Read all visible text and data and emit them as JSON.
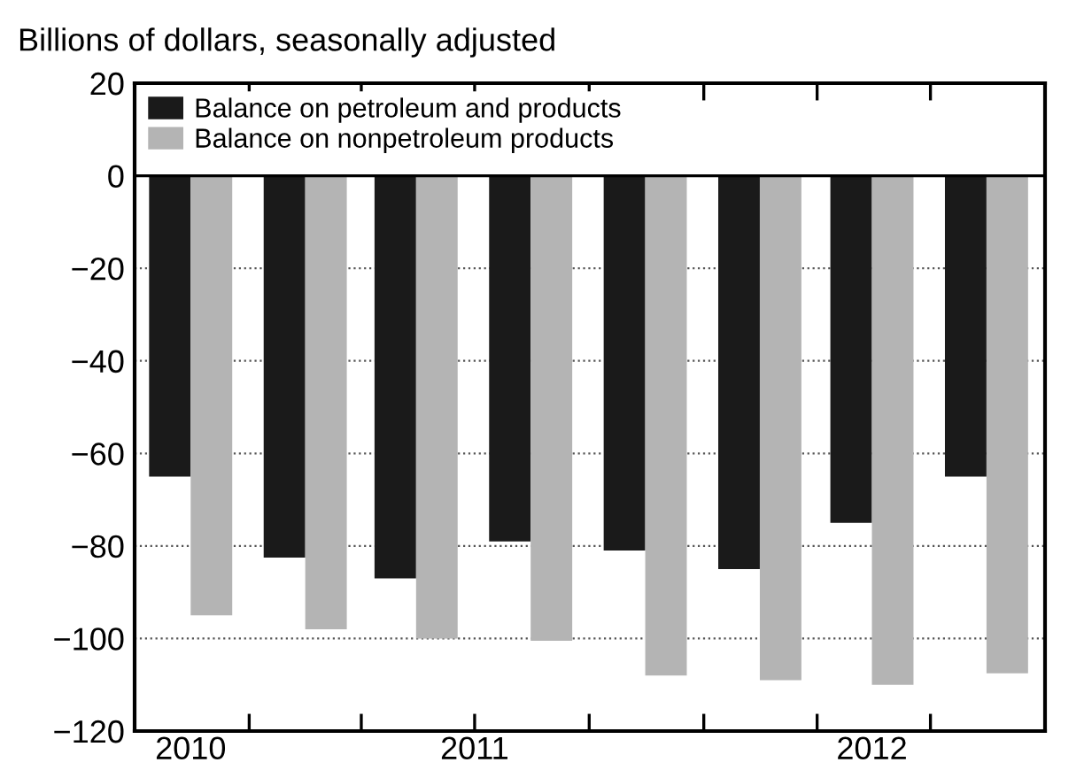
{
  "chart_data": {
    "type": "bar",
    "ylabel": "Billions of dollars, seasonally adjusted",
    "x": [
      "2010-11-15",
      "2011-02-15",
      "2011-05-15",
      "2011-08-15",
      "2011-11-15",
      "2012-02-15",
      "2012-05-15",
      "2012-08-15"
    ],
    "series": [
      {
        "name": "Balance on petroleum and products",
        "color": "#1a1a1a",
        "values": [
          -65,
          -82.5,
          -87,
          -79,
          -81,
          -85,
          -75,
          -65
        ]
      },
      {
        "name": "Balance on nonpetroleum products",
        "color": "#b4b4b4",
        "values": [
          -95,
          -98,
          -100,
          -100.5,
          -108,
          -109,
          -110,
          -107.5
        ]
      }
    ],
    "xlim": [
      "2010-10-01",
      "2012-10-01"
    ],
    "xticks": [
      {
        "value": "2011-01-01",
        "label": null
      },
      {
        "value": "2011-04-01",
        "label": null
      },
      {
        "value": "2011-07-01",
        "label": null
      },
      {
        "value": "2011-10-01",
        "label": null
      },
      {
        "value": "2012-01-01",
        "label": null
      },
      {
        "value": "2012-04-01",
        "label": null
      },
      {
        "value": "2012-07-01",
        "label": null
      },
      {
        "value": "2010-11-15",
        "label": "2010"
      },
      {
        "value": "2011-07-01",
        "label": "2011"
      },
      {
        "value": "2012-05-15",
        "label": "2012"
      }
    ],
    "ylim": [
      -120,
      20
    ],
    "yticks": [
      {
        "value": -120,
        "label": "−120"
      },
      {
        "value": -100,
        "label": "−100"
      },
      {
        "value": -80,
        "label": "−80"
      },
      {
        "value": -60,
        "label": "−60"
      },
      {
        "value": -40,
        "label": "−40"
      },
      {
        "value": -20,
        "label": "−20"
      },
      0,
      20
    ],
    "grid": "y",
    "legend": "top left"
  }
}
